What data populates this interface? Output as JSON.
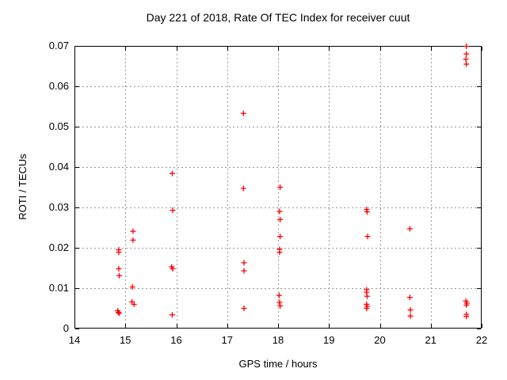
{
  "chart_data": {
    "type": "scatter",
    "title": "Day 221 of 2018, Rate Of TEC Index for receiver cuut",
    "xlabel": "GPS time / hours",
    "ylabel": "ROTI / TECUs",
    "xlim": [
      14,
      22
    ],
    "ylim": [
      0,
      0.07
    ],
    "x_ticks": [
      14,
      15,
      16,
      17,
      18,
      19,
      20,
      21,
      22
    ],
    "x_tick_labels": [
      "14",
      "15",
      "16",
      "17",
      "18",
      "19",
      "20",
      "21",
      "22"
    ],
    "y_ticks": [
      0,
      0.01,
      0.02,
      0.03,
      0.04,
      0.05,
      0.06,
      0.07
    ],
    "y_tick_labels": [
      "0",
      "0.01",
      "0.02",
      "0.03",
      "0.04",
      "0.05",
      "0.06",
      "0.07"
    ],
    "grid": true,
    "grid_style": "dotted",
    "legend_position": "none",
    "marker": {
      "shape": "plus",
      "color": "#ff0000",
      "size": 7
    },
    "grid_color": "#9a9a9a",
    "border_color": "#000000",
    "background_color": "#ffffff",
    "points": [
      [
        14.87,
        0.0195
      ],
      [
        14.87,
        0.0189
      ],
      [
        14.87,
        0.0148
      ],
      [
        14.88,
        0.0131
      ],
      [
        14.85,
        0.0044
      ],
      [
        14.86,
        0.004
      ],
      [
        14.88,
        0.0038
      ],
      [
        15.15,
        0.0241
      ],
      [
        15.15,
        0.0219
      ],
      [
        15.14,
        0.0103
      ],
      [
        15.13,
        0.0066
      ],
      [
        15.17,
        0.006
      ],
      [
        15.92,
        0.0384
      ],
      [
        15.93,
        0.0293
      ],
      [
        15.91,
        0.0153
      ],
      [
        15.93,
        0.0148
      ],
      [
        15.92,
        0.0034
      ],
      [
        17.32,
        0.0533
      ],
      [
        17.32,
        0.0347
      ],
      [
        17.33,
        0.0163
      ],
      [
        17.33,
        0.0143
      ],
      [
        17.33,
        0.005
      ],
      [
        18.04,
        0.035
      ],
      [
        18.03,
        0.029
      ],
      [
        18.04,
        0.027
      ],
      [
        18.04,
        0.0228
      ],
      [
        18.03,
        0.0196
      ],
      [
        18.03,
        0.0189
      ],
      [
        18.02,
        0.0082
      ],
      [
        18.03,
        0.0065
      ],
      [
        18.04,
        0.0056
      ],
      [
        19.74,
        0.0295
      ],
      [
        19.75,
        0.0289
      ],
      [
        19.76,
        0.0228
      ],
      [
        19.74,
        0.0096
      ],
      [
        19.74,
        0.009
      ],
      [
        19.75,
        0.008
      ],
      [
        19.74,
        0.006
      ],
      [
        19.75,
        0.0055
      ],
      [
        19.74,
        0.005
      ],
      [
        20.59,
        0.0247
      ],
      [
        20.59,
        0.0077
      ],
      [
        20.6,
        0.0046
      ],
      [
        20.6,
        0.0031
      ],
      [
        21.7,
        0.0699
      ],
      [
        21.7,
        0.068
      ],
      [
        21.69,
        0.0667
      ],
      [
        21.7,
        0.0655
      ],
      [
        21.69,
        0.0068
      ],
      [
        21.71,
        0.0063
      ],
      [
        21.7,
        0.0058
      ],
      [
        21.7,
        0.0035
      ],
      [
        21.7,
        0.003
      ]
    ]
  }
}
